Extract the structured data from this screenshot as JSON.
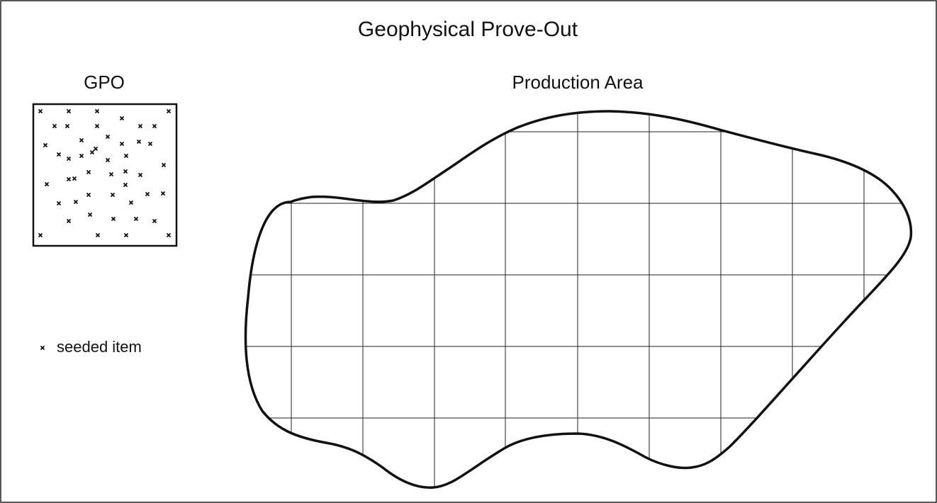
{
  "header": {
    "title": "Geophysical Prove-Out"
  },
  "gpo": {
    "label": "GPO"
  },
  "production_area": {
    "label": "Production Area"
  },
  "legend": {
    "label": "seeded item"
  }
}
